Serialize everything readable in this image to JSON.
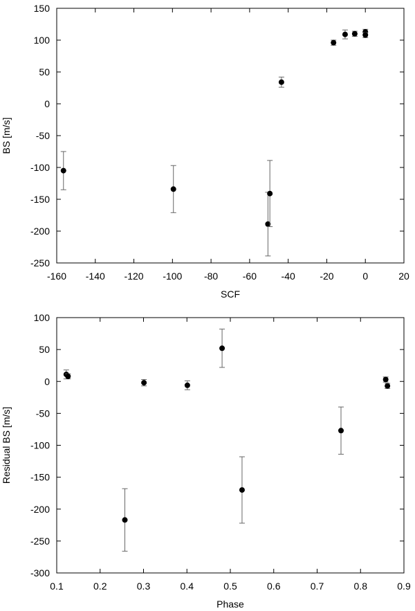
{
  "chart_data": [
    {
      "type": "scatter",
      "xlabel": "SCF",
      "ylabel": "BS [m/s]",
      "xlim": [
        -160,
        20
      ],
      "ylim": [
        -250,
        150
      ],
      "grid": false,
      "xticks": [
        "-160",
        "-140",
        "-120",
        "-100",
        "-80",
        "-60",
        "-40",
        "-20",
        "0",
        "20"
      ],
      "yticks": [
        "150",
        "100",
        "50",
        "0",
        "-50",
        "-100",
        "-150",
        "-200",
        "-250"
      ],
      "points": [
        {
          "x": -156.5,
          "y": -105,
          "err": 30
        },
        {
          "x": -99.5,
          "y": -134,
          "err": 37
        },
        {
          "x": -50.5,
          "y": -189,
          "err": 50
        },
        {
          "x": -49.5,
          "y": -141,
          "err": 52
        },
        {
          "x": -43.5,
          "y": 34,
          "err": 8
        },
        {
          "x": -16.5,
          "y": 96,
          "err": 4
        },
        {
          "x": -10.5,
          "y": 109,
          "err": 7
        },
        {
          "x": -5.5,
          "y": 110,
          "err": 4
        },
        {
          "x": 0,
          "y": 113,
          "err": 4
        },
        {
          "x": 0,
          "y": 108,
          "err": 4
        }
      ]
    },
    {
      "type": "scatter",
      "xlabel": "Phase",
      "ylabel": "Residual BS [m/s]",
      "xlim": [
        0.1,
        0.9
      ],
      "ylim": [
        -300,
        100
      ],
      "grid": false,
      "xticks": [
        "0.1",
        "0.2",
        "0.3",
        "0.4",
        "0.5",
        "0.6",
        "0.7",
        "0.8",
        "0.9"
      ],
      "yticks": [
        "100",
        "50",
        "0",
        "-50",
        "-100",
        "-150",
        "-200",
        "-250",
        "-300"
      ],
      "points": [
        {
          "x": 0.122,
          "y": 11,
          "err": 7
        },
        {
          "x": 0.126,
          "y": 8,
          "err": 4
        },
        {
          "x": 0.257,
          "y": -217,
          "err": 49
        },
        {
          "x": 0.301,
          "y": -2,
          "err": 5
        },
        {
          "x": 0.401,
          "y": -6,
          "err": 7
        },
        {
          "x": 0.481,
          "y": 52,
          "err": 30
        },
        {
          "x": 0.527,
          "y": -170,
          "err": 52
        },
        {
          "x": 0.755,
          "y": -77,
          "err": 37
        },
        {
          "x": 0.858,
          "y": 3,
          "err": 4
        },
        {
          "x": 0.862,
          "y": -7,
          "err": 4
        }
      ]
    }
  ]
}
